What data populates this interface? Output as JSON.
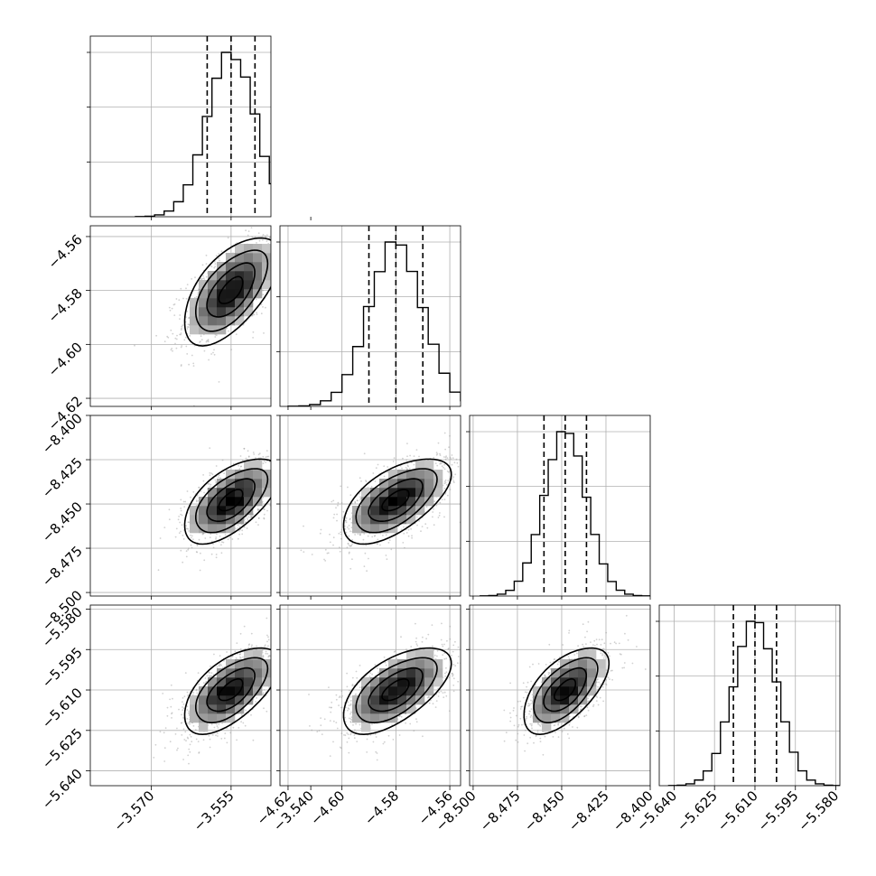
{
  "chart_data": {
    "type": "corner",
    "title": "",
    "grid": true,
    "parameters": [
      {
        "label": "",
        "median": -3.555,
        "quantiles": [
          -3.5595,
          -3.555,
          -3.5505
        ],
        "sigma": 0.0045,
        "range": [
          -3.5815,
          -3.5475
        ],
        "ticks": [
          -3.57,
          -3.555,
          -3.54
        ],
        "tick_labels": [
          "−3.570",
          "−3.555",
          "−3.540"
        ]
      },
      {
        "label": "",
        "median": -4.58,
        "quantiles": [
          -4.59,
          -4.58,
          -4.57
        ],
        "sigma": 0.01,
        "range": [
          -4.623,
          -4.556
        ],
        "ticks": [
          -4.62,
          -4.6,
          -4.58,
          -4.56
        ],
        "tick_labels": [
          "−4.62",
          "−4.60",
          "−4.58",
          "−4.56"
        ]
      },
      {
        "label": "",
        "median": -8.448,
        "quantiles": [
          -8.46,
          -8.448,
          -8.436
        ],
        "sigma": 0.012,
        "range": [
          -8.502,
          -8.4
        ],
        "ticks": [
          -8.5,
          -8.475,
          -8.45,
          -8.425,
          -8.4
        ],
        "tick_labels": [
          "−8.500",
          "−8.475",
          "−8.450",
          "−8.425",
          "−8.400"
        ]
      },
      {
        "label": "",
        "median": -5.61,
        "quantiles": [
          -5.618,
          -5.61,
          -5.602
        ],
        "sigma": 0.008,
        "range": [
          -5.6455,
          -5.5785
        ],
        "ticks": [
          -5.64,
          -5.625,
          -5.61,
          -5.595,
          -5.58
        ],
        "tick_labels": [
          "−5.640",
          "−5.625",
          "−5.610",
          "−5.595",
          "−5.580"
        ]
      }
    ],
    "correlation": 0.6,
    "contour_levels_sigma": [
      0.5,
      1.0,
      1.5,
      2.0
    ],
    "histogram_bins": 20,
    "colors": {
      "hist": "#000000",
      "scatter": "#9a9a9a",
      "density_dark": "#000000",
      "density_light": "#ffffff"
    }
  }
}
